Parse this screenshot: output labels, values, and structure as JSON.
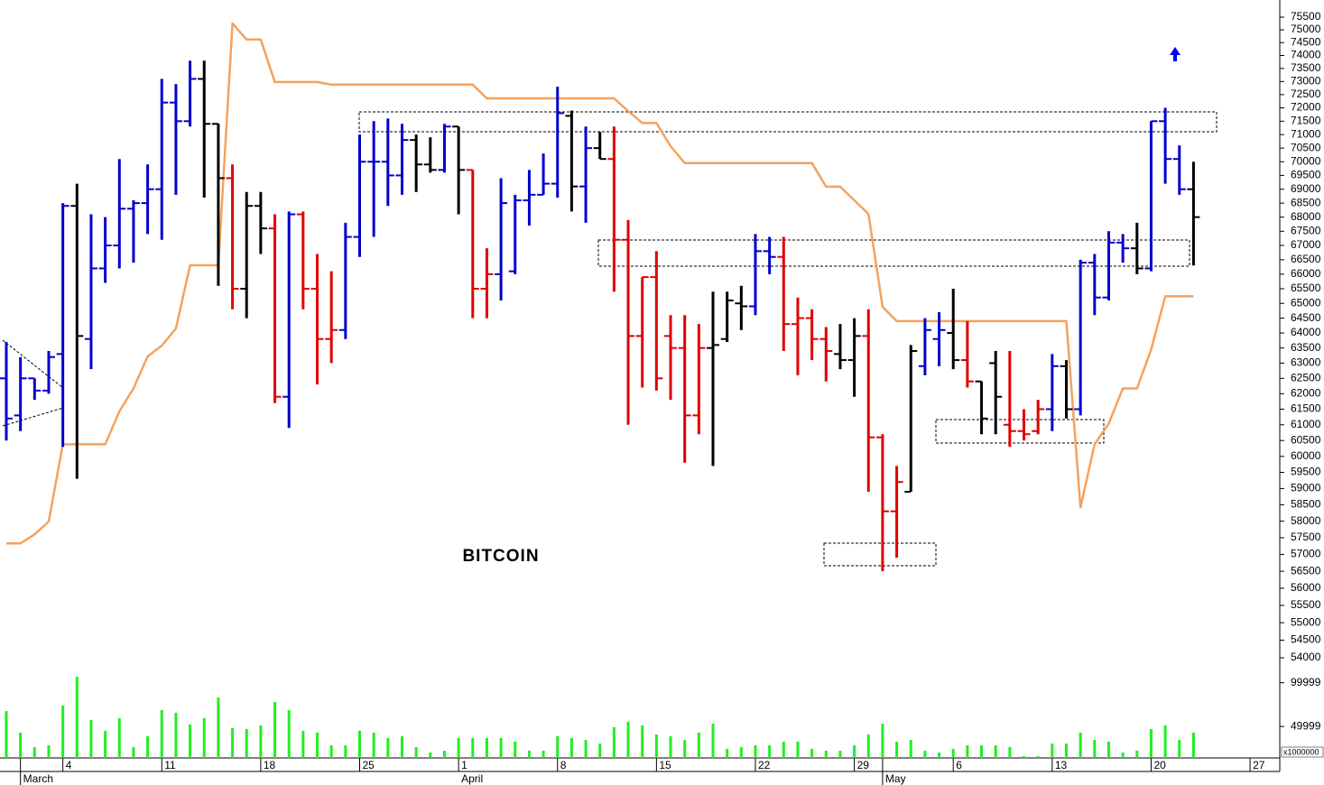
{
  "chart_data": {
    "type": "ohlc",
    "title": "BITCOIN",
    "log_scale": true,
    "categories": [
      null,
      null,
      null,
      null,
      "4",
      null,
      null,
      null,
      null,
      null,
      null,
      "11",
      null,
      null,
      null,
      null,
      null,
      null,
      "18",
      null,
      null,
      null,
      null,
      null,
      null,
      "25",
      null,
      null,
      null,
      null,
      null,
      null,
      "1",
      null,
      null,
      null,
      null,
      null,
      null,
      "8",
      null,
      null,
      null,
      null,
      null,
      null,
      "15",
      null,
      null,
      null,
      null,
      null,
      null,
      "22",
      null,
      null,
      null,
      null,
      null,
      null,
      "29",
      null,
      null,
      null,
      null,
      null,
      null,
      "6",
      null,
      null,
      null,
      null,
      null,
      null,
      "13",
      null,
      null,
      null,
      null,
      null,
      null,
      "20",
      null,
      null,
      null,
      null,
      null,
      null,
      "27"
    ],
    "months": [
      null,
      "March",
      null,
      null,
      null,
      null,
      null,
      null,
      null,
      null,
      null,
      null,
      null,
      null,
      null,
      null,
      null,
      null,
      null,
      null,
      null,
      null,
      null,
      null,
      null,
      null,
      null,
      null,
      null,
      null,
      null,
      null,
      "April",
      null,
      null,
      null,
      null,
      null,
      null,
      null,
      null,
      null,
      null,
      null,
      null,
      null,
      null,
      null,
      null,
      null,
      null,
      null,
      null,
      null,
      null,
      null,
      null,
      null,
      null,
      null,
      null,
      null,
      "May",
      null,
      null,
      null,
      null,
      null,
      null,
      null,
      null,
      null,
      null,
      null,
      null,
      null,
      null,
      null,
      null,
      null,
      null,
      null,
      null,
      null,
      null,
      null,
      null,
      null,
      null
    ],
    "open": [
      62500,
      61300,
      62500,
      62100,
      63300,
      68400,
      63800,
      66200,
      67000,
      68300,
      68500,
      69000,
      72200,
      71500,
      73100,
      71400,
      69400,
      65500,
      68400,
      67600,
      61900,
      68100,
      65500,
      63800,
      64100,
      67300,
      70000,
      70000,
      69500,
      70800,
      69900,
      69700,
      71300,
      69700,
      65500,
      66000,
      66100,
      68600,
      68800,
      69200,
      71700,
      69100,
      70500,
      70100,
      67200,
      63900,
      65900,
      63900,
      63500,
      61300,
      63500,
      63800,
      65000,
      64900,
      66800,
      66600,
      64300,
      64500,
      63800,
      63300,
      63100,
      63900,
      60600,
      58300,
      58900,
      62900,
      63800,
      64000,
      63100,
      62400,
      63000,
      61000,
      60800,
      60800,
      61500,
      62900,
      61500,
      66400,
      65200,
      67100,
      66900,
      66200,
      71500,
      70100,
      69000,
      null,
      null,
      null,
      null
    ],
    "high": [
      63700,
      63200,
      62500,
      63400,
      68500,
      69200,
      68100,
      68000,
      70100,
      68600,
      69900,
      73100,
      72900,
      73800,
      73800,
      71400,
      69900,
      68900,
      68900,
      68100,
      68200,
      68200,
      66700,
      66100,
      67800,
      71000,
      71500,
      71600,
      71400,
      71000,
      70900,
      71400,
      71300,
      69700,
      66900,
      69400,
      68800,
      69700,
      70300,
      72800,
      71900,
      71300,
      71100,
      71300,
      67900,
      65900,
      66800,
      64600,
      64600,
      64300,
      65400,
      65400,
      65600,
      67400,
      67300,
      67300,
      65200,
      64800,
      64200,
      64300,
      64500,
      64800,
      60700,
      59700,
      63600,
      64500,
      64700,
      65500,
      64400,
      62400,
      63400,
      63400,
      61500,
      61800,
      63300,
      63100,
      66500,
      66700,
      67500,
      67400,
      67800,
      71500,
      72000,
      70600,
      70000,
      null,
      null,
      null,
      null
    ],
    "low": [
      60500,
      60800,
      61800,
      62000,
      60300,
      59300,
      62800,
      65700,
      66200,
      66400,
      67400,
      67200,
      68800,
      71300,
      68700,
      65600,
      64800,
      64500,
      66700,
      61700,
      60900,
      64800,
      62300,
      63000,
      63800,
      66600,
      67300,
      68400,
      68800,
      68900,
      69600,
      69600,
      68100,
      64500,
      64500,
      65100,
      66000,
      67700,
      68800,
      68700,
      68200,
      67800,
      70100,
      65400,
      61000,
      62200,
      62100,
      61800,
      59800,
      60700,
      59700,
      63700,
      64100,
      64600,
      66000,
      63400,
      62600,
      63100,
      62400,
      62800,
      61900,
      58900,
      56500,
      56900,
      58900,
      62600,
      62900,
      62800,
      62200,
      60700,
      60700,
      60300,
      60500,
      60700,
      60800,
      61200,
      61300,
      64600,
      65100,
      66400,
      66000,
      66100,
      69200,
      68800,
      66300,
      null,
      null,
      null,
      null
    ],
    "close": [
      61200,
      62500,
      62100,
      63200,
      68400,
      63900,
      66200,
      67000,
      68300,
      68500,
      69000,
      72200,
      71500,
      73100,
      71400,
      69400,
      65500,
      68400,
      67600,
      61900,
      68100,
      65500,
      63800,
      64100,
      67300,
      70000,
      70000,
      69500,
      70800,
      69900,
      69700,
      71300,
      69700,
      65500,
      66000,
      68500,
      68600,
      68800,
      69200,
      71800,
      69100,
      70500,
      70100,
      67200,
      63900,
      65900,
      62500,
      63500,
      61300,
      63500,
      63600,
      65100,
      64900,
      66800,
      66600,
      64300,
      64500,
      63800,
      63400,
      63100,
      63900,
      60600,
      58300,
      59200,
      63400,
      64100,
      64100,
      63100,
      62400,
      61200,
      61900,
      60800,
      60700,
      61500,
      62900,
      61500,
      66400,
      65200,
      67100,
      66900,
      66200,
      71500,
      70100,
      69000,
      68000,
      null,
      null,
      null,
      null
    ],
    "bar_colors": [
      "#0000cc",
      "#0000cc",
      "#0000cc",
      "#0000cc",
      "#0000cc",
      "#000000",
      "#0000cc",
      "#0000cc",
      "#0000cc",
      "#0000cc",
      "#0000cc",
      "#0000cc",
      "#0000cc",
      "#0000cc",
      "#000000",
      "#000000",
      "#e00000",
      "#000000",
      "#000000",
      "#e00000",
      "#0000cc",
      "#e00000",
      "#e00000",
      "#e00000",
      "#0000cc",
      "#0000cc",
      "#0000cc",
      "#0000cc",
      "#0000cc",
      "#000000",
      "#000000",
      "#0000cc",
      "#000000",
      "#e00000",
      "#e00000",
      "#0000cc",
      "#0000cc",
      "#0000cc",
      "#0000cc",
      "#0000cc",
      "#000000",
      "#0000cc",
      "#000000",
      "#e00000",
      "#e00000",
      "#e00000",
      "#e00000",
      "#e00000",
      "#e00000",
      "#e00000",
      "#000000",
      "#000000",
      "#000000",
      "#0000cc",
      "#0000cc",
      "#e00000",
      "#e00000",
      "#e00000",
      "#e00000",
      "#000000",
      "#000000",
      "#e00000",
      "#e00000",
      "#e00000",
      "#000000",
      "#0000cc",
      "#0000cc",
      "#000000",
      "#e00000",
      "#000000",
      "#000000",
      "#e00000",
      "#e00000",
      "#e00000",
      "#0000cc",
      "#000000",
      "#0000cc",
      "#0000cc",
      "#0000cc",
      "#0000cc",
      "#000000",
      "#0000cc",
      "#0000cc",
      "#0000cc",
      "#000000",
      null,
      null,
      null,
      null
    ],
    "ylim": [
      53720,
      76180
    ],
    "yticks": [
      75500,
      75000,
      74500,
      74000,
      73500,
      73000,
      72500,
      72000,
      71500,
      71000,
      70500,
      70000,
      69500,
      69000,
      68500,
      68000,
      67500,
      67000,
      66500,
      66000,
      65500,
      65000,
      64500,
      64000,
      63500,
      63000,
      62500,
      62000,
      61500,
      61000,
      60500,
      60000,
      59500,
      59000,
      58500,
      58000,
      57500,
      57000,
      56500,
      56000,
      55500,
      55000,
      54500,
      54000
    ],
    "line": {
      "color": "#f5a25d",
      "values": [
        57330,
        57330,
        57600,
        57990,
        60380,
        60380,
        60380,
        60380,
        61430,
        62170,
        63220,
        63580,
        64150,
        66310,
        66310,
        66310,
        75250,
        74620,
        74620,
        72980,
        72980,
        72980,
        72980,
        72880,
        72880,
        72880,
        72880,
        72880,
        72880,
        72880,
        72880,
        72880,
        72880,
        72880,
        72360,
        72360,
        72360,
        72360,
        72360,
        72360,
        72360,
        72360,
        72360,
        72360,
        71880,
        71430,
        71430,
        70570,
        69950,
        69950,
        69950,
        69950,
        69950,
        69950,
        69950,
        69950,
        69950,
        69950,
        69090,
        69090,
        68600,
        68110,
        64880,
        64400,
        64400,
        64400,
        64400,
        64400,
        64400,
        64400,
        64400,
        64400,
        64400,
        64400,
        64400,
        64400,
        58420,
        60380,
        61040,
        62170,
        62170,
        63450,
        65240,
        65240,
        65240,
        null,
        null,
        null,
        null
      ]
    },
    "volume": {
      "color": "#22ee22",
      "values": [
        67600,
        42900,
        26400,
        28400,
        73800,
        106800,
        57300,
        45000,
        59400,
        26400,
        38800,
        68700,
        65600,
        52200,
        59400,
        83100,
        48000,
        47000,
        51100,
        78000,
        68700,
        45000,
        42900,
        28400,
        28400,
        45000,
        42900,
        36700,
        38800,
        26400,
        20200,
        22300,
        36700,
        36700,
        36700,
        36700,
        32600,
        22300,
        22300,
        38800,
        36700,
        34600,
        30500,
        49100,
        55300,
        51100,
        40800,
        38800,
        34600,
        42900,
        53200,
        24300,
        26400,
        28400,
        28400,
        32600,
        32600,
        24300,
        22300,
        22300,
        28400,
        40800,
        53200,
        32600,
        34600,
        22300,
        20200,
        24300,
        28400,
        28400,
        28400,
        26400,
        16100,
        16100,
        30500,
        30500,
        42900,
        34600,
        32600,
        20200,
        22300,
        47000,
        51100,
        34600,
        42900,
        null,
        null,
        null,
        null
      ],
      "ylim": [
        14000,
        112000
      ],
      "yticks": [
        99999,
        49999
      ],
      "unit_label": "x1000000"
    }
  }
}
